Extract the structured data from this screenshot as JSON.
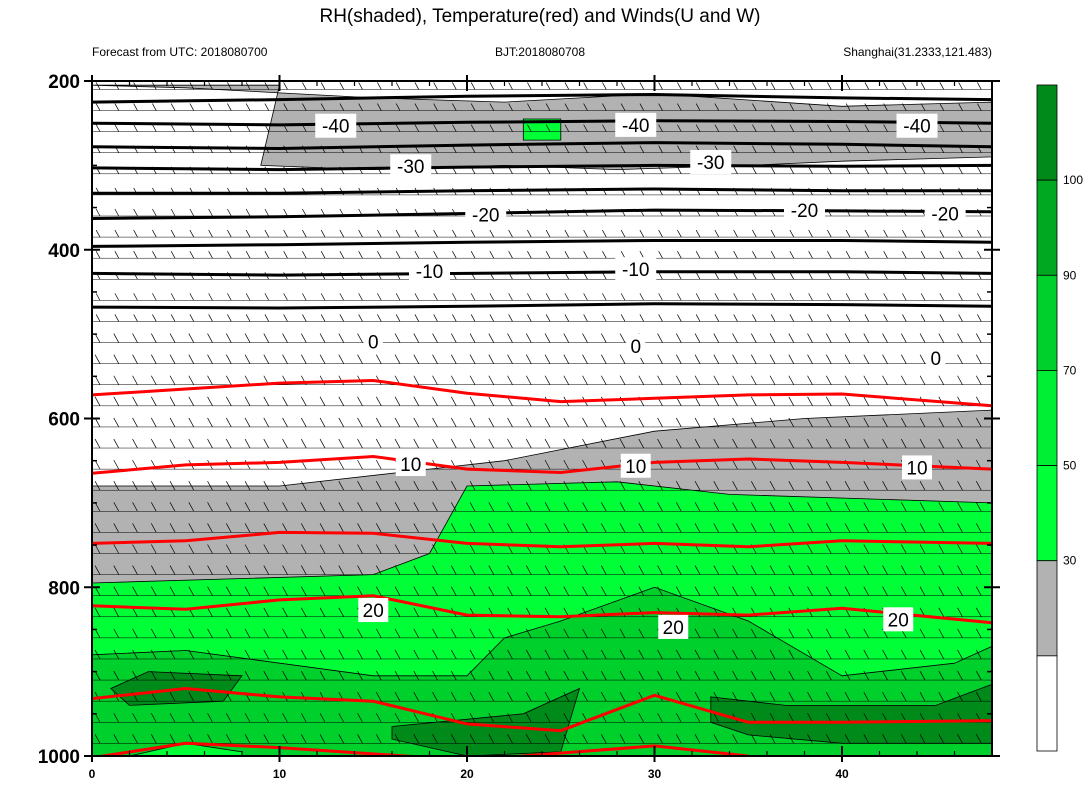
{
  "chart_data": {
    "type": "contour",
    "title": "RH(shaded), Temperature(red) and Winds(U and W)",
    "header": {
      "left": "Forecast from UTC: 2018080700",
      "center": "BJT:2018080708",
      "right": "Shanghai(31.2333,121.483)"
    },
    "x_axis": {
      "range": [
        0,
        48
      ],
      "ticks": [
        "0",
        "10",
        "20",
        "30",
        "40"
      ]
    },
    "y_axis": {
      "range": [
        200,
        1000
      ],
      "inverted": true,
      "ticks": [
        "200",
        "400",
        "600",
        "800",
        "1000"
      ]
    },
    "colorbar": {
      "levels": [
        "30",
        "50",
        "70",
        "90",
        "100"
      ],
      "colors": [
        "#ffffff",
        "#b2b2b2",
        "#00ff37",
        "#00ee33",
        "#00d02b",
        "#00a821",
        "#008a1a"
      ]
    },
    "colors": {
      "temp_warm": "#ff0000",
      "temp_cold": "#000000",
      "outline": "#000000"
    },
    "temperature_labels": [
      {
        "text": "-40",
        "x": 13,
        "p": 253
      },
      {
        "text": "-40",
        "x": 29,
        "p": 252
      },
      {
        "text": "-40",
        "x": 44,
        "p": 253
      },
      {
        "text": "-30",
        "x": 17,
        "p": 301
      },
      {
        "text": "-30",
        "x": 33,
        "p": 296
      },
      {
        "text": "-20",
        "x": 21,
        "p": 358
      },
      {
        "text": "-20",
        "x": 38,
        "p": 353
      },
      {
        "text": "-20",
        "x": 45.5,
        "p": 357
      },
      {
        "text": "-10",
        "x": 18,
        "p": 425
      },
      {
        "text": "-10",
        "x": 29,
        "p": 423
      },
      {
        "text": "0",
        "x": 15,
        "p": 509
      },
      {
        "text": "0",
        "x": 29,
        "p": 514
      },
      {
        "text": "0",
        "x": 45,
        "p": 528
      },
      {
        "text": "10",
        "x": 17,
        "p": 654
      },
      {
        "text": "10",
        "x": 29,
        "p": 656
      },
      {
        "text": "10",
        "x": 44,
        "p": 658
      },
      {
        "text": "20",
        "x": 15,
        "p": 827
      },
      {
        "text": "20",
        "x": 31,
        "p": 847
      },
      {
        "text": "20",
        "x": 43,
        "p": 838
      }
    ],
    "temperature_lines_cold": [
      [
        [
          0,
          225
        ],
        [
          10,
          222
        ],
        [
          20,
          218
        ],
        [
          30,
          216
        ],
        [
          40,
          220
        ],
        [
          48,
          222
        ]
      ],
      [
        [
          0,
          250
        ],
        [
          10,
          252
        ],
        [
          20,
          249
        ],
        [
          30,
          247
        ],
        [
          40,
          248
        ],
        [
          48,
          250
        ]
      ],
      [
        [
          0,
          278
        ],
        [
          10,
          280
        ],
        [
          20,
          276
        ],
        [
          30,
          273
        ],
        [
          40,
          275
        ],
        [
          48,
          278
        ]
      ],
      [
        [
          0,
          303
        ],
        [
          10,
          305
        ],
        [
          20,
          302
        ],
        [
          30,
          300
        ],
        [
          40,
          301
        ],
        [
          48,
          300
        ]
      ],
      [
        [
          0,
          333
        ],
        [
          10,
          333
        ],
        [
          20,
          330
        ],
        [
          30,
          328
        ],
        [
          40,
          330
        ],
        [
          48,
          330
        ]
      ],
      [
        [
          0,
          363
        ],
        [
          10,
          361
        ],
        [
          20,
          357
        ],
        [
          30,
          353
        ],
        [
          40,
          354
        ],
        [
          48,
          355
        ]
      ],
      [
        [
          0,
          396
        ],
        [
          10,
          394
        ],
        [
          20,
          391
        ],
        [
          30,
          389
        ],
        [
          40,
          389
        ],
        [
          48,
          391
        ]
      ],
      [
        [
          0,
          428
        ],
        [
          10,
          430
        ],
        [
          20,
          428
        ],
        [
          30,
          426
        ],
        [
          40,
          426
        ],
        [
          48,
          428
        ]
      ],
      [
        [
          0,
          468
        ],
        [
          10,
          469
        ],
        [
          20,
          467
        ],
        [
          30,
          464
        ],
        [
          40,
          465
        ],
        [
          48,
          467
        ]
      ]
    ],
    "temperature_lines_warm": [
      [
        [
          0,
          572
        ],
        [
          5,
          565
        ],
        [
          10,
          558
        ],
        [
          15,
          555
        ],
        [
          20,
          570
        ],
        [
          25,
          580
        ],
        [
          30,
          576
        ],
        [
          35,
          572
        ],
        [
          40,
          571
        ],
        [
          48,
          585
        ]
      ],
      [
        [
          0,
          665
        ],
        [
          5,
          655
        ],
        [
          10,
          652
        ],
        [
          15,
          645
        ],
        [
          20,
          660
        ],
        [
          25,
          664
        ],
        [
          30,
          652
        ],
        [
          35,
          648
        ],
        [
          40,
          652
        ],
        [
          48,
          660
        ]
      ],
      [
        [
          0,
          748
        ],
        [
          5,
          745
        ],
        [
          10,
          735
        ],
        [
          15,
          736
        ],
        [
          20,
          748
        ],
        [
          25,
          752
        ],
        [
          30,
          748
        ],
        [
          35,
          752
        ],
        [
          40,
          745
        ],
        [
          48,
          748
        ]
      ],
      [
        [
          0,
          822
        ],
        [
          5,
          826
        ],
        [
          10,
          815
        ],
        [
          15,
          810
        ],
        [
          20,
          833
        ],
        [
          25,
          835
        ],
        [
          30,
          830
        ],
        [
          35,
          833
        ],
        [
          40,
          825
        ],
        [
          48,
          842
        ]
      ],
      [
        [
          0,
          932
        ],
        [
          5,
          920
        ],
        [
          10,
          930
        ],
        [
          15,
          935
        ],
        [
          20,
          962
        ],
        [
          25,
          970
        ],
        [
          30,
          928
        ],
        [
          35,
          960
        ],
        [
          40,
          960
        ],
        [
          48,
          958
        ]
      ],
      [
        [
          0,
          1002
        ],
        [
          5,
          985
        ],
        [
          10,
          990
        ],
        [
          20,
          1005
        ],
        [
          30,
          988
        ],
        [
          35,
          1000
        ]
      ]
    ],
    "rh_regions": [
      {
        "level": "50",
        "color": "#b2b2b2",
        "points": [
          [
            0,
            205
          ],
          [
            10,
            205
          ],
          [
            9,
            300
          ],
          [
            15,
            305
          ],
          [
            22,
            300
          ],
          [
            28,
            305
          ],
          [
            35,
            300
          ],
          [
            40,
            295
          ],
          [
            48,
            290
          ],
          [
            48,
            225
          ],
          [
            40,
            230
          ],
          [
            30,
            215
          ],
          [
            22,
            225
          ],
          [
            15,
            220
          ],
          [
            5,
            208
          ],
          [
            0,
            205
          ]
        ]
      },
      {
        "level": "50",
        "color": "#b2b2b2",
        "points": [
          [
            0,
            680
          ],
          [
            10,
            680
          ],
          [
            18,
            660
          ],
          [
            22,
            650
          ],
          [
            30,
            615
          ],
          [
            38,
            600
          ],
          [
            48,
            590
          ],
          [
            48,
            1000
          ],
          [
            0,
            1000
          ]
        ]
      },
      {
        "level": "70",
        "color": "#00ff37",
        "points": [
          [
            0,
            795
          ],
          [
            15,
            785
          ],
          [
            18,
            760
          ],
          [
            20,
            680
          ],
          [
            28,
            675
          ],
          [
            34,
            690
          ],
          [
            48,
            700
          ],
          [
            48,
            1000
          ],
          [
            0,
            1000
          ]
        ]
      },
      {
        "level": "90",
        "color": "#00d02b",
        "points": [
          [
            0,
            880
          ],
          [
            5,
            875
          ],
          [
            15,
            905
          ],
          [
            20,
            905
          ],
          [
            22,
            860
          ],
          [
            25,
            840
          ],
          [
            30,
            800
          ],
          [
            35,
            840
          ],
          [
            40,
            905
          ],
          [
            46,
            890
          ],
          [
            48,
            870
          ],
          [
            48,
            1000
          ],
          [
            0,
            1000
          ]
        ]
      },
      {
        "level": "100",
        "color": "#008a1a",
        "points": [
          [
            1,
            920
          ],
          [
            3,
            900
          ],
          [
            8,
            905
          ],
          [
            7,
            935
          ],
          [
            2,
            940
          ]
        ]
      },
      {
        "level": "100",
        "color": "#008a1a",
        "points": [
          [
            16,
            965
          ],
          [
            23,
            950
          ],
          [
            26,
            920
          ],
          [
            25,
            995
          ],
          [
            20,
            1000
          ],
          [
            16,
            980
          ]
        ]
      },
      {
        "level": "100",
        "color": "#008a1a",
        "points": [
          [
            33,
            930
          ],
          [
            37,
            940
          ],
          [
            45,
            940
          ],
          [
            48,
            915
          ],
          [
            48,
            985
          ],
          [
            40,
            985
          ],
          [
            35,
            975
          ],
          [
            33,
            960
          ]
        ]
      },
      {
        "level": "70",
        "color": "#00ff37",
        "points": [
          [
            2,
            1000
          ],
          [
            5,
            985
          ],
          [
            8,
            995
          ],
          [
            8,
            1000
          ]
        ]
      },
      {
        "level": "70",
        "color": "#00ff37",
        "points": [
          [
            23,
            245
          ],
          [
            25,
            245
          ],
          [
            25,
            270
          ],
          [
            23,
            270
          ]
        ]
      }
    ]
  }
}
